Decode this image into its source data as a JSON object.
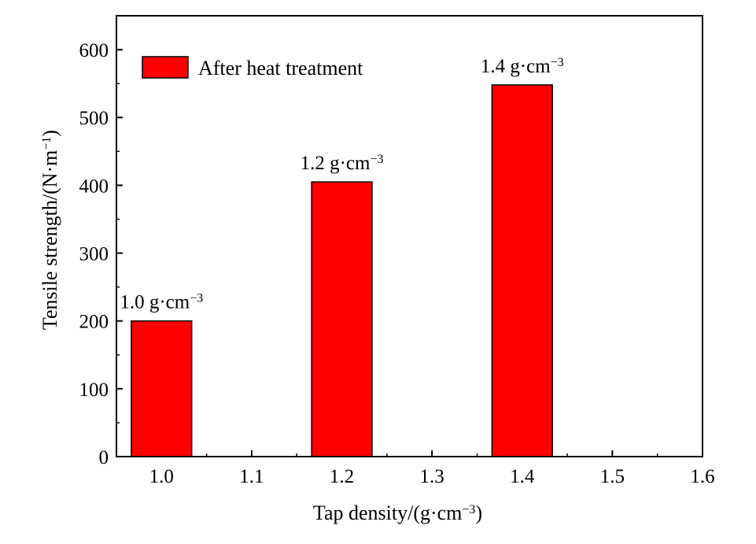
{
  "chart_data": {
    "type": "bar",
    "title": "",
    "xlabel": "Tap density/(g·cm⁻³)",
    "ylabel": "Tensile strength/(N·m⁻¹)",
    "xlim": [
      0.95,
      1.6
    ],
    "ylim": [
      0,
      650
    ],
    "x_ticks": [
      1.0,
      1.1,
      1.2,
      1.3,
      1.4,
      1.5,
      1.6
    ],
    "x_tick_labels": [
      "1.0",
      "1.1",
      "1.2",
      "1.3",
      "1.4",
      "1.5",
      "1.6"
    ],
    "y_ticks": [
      0,
      100,
      200,
      300,
      400,
      500,
      600
    ],
    "y_tick_labels": [
      "0",
      "100",
      "200",
      "300",
      "400",
      "500",
      "600"
    ],
    "bar_width": 0.067,
    "series": [
      {
        "name": "After heat treatment",
        "color": "#ff0000",
        "points": [
          {
            "x": 1.0,
            "y": 200,
            "label": "1.0 g·cm⁻³"
          },
          {
            "x": 1.2,
            "y": 405,
            "label": "1.2 g·cm⁻³"
          },
          {
            "x": 1.4,
            "y": 548,
            "label": "1.4 g·cm⁻³"
          }
        ]
      }
    ],
    "legend": {
      "position": "top-left",
      "entries": [
        "After heat treatment"
      ]
    },
    "grid": false
  }
}
